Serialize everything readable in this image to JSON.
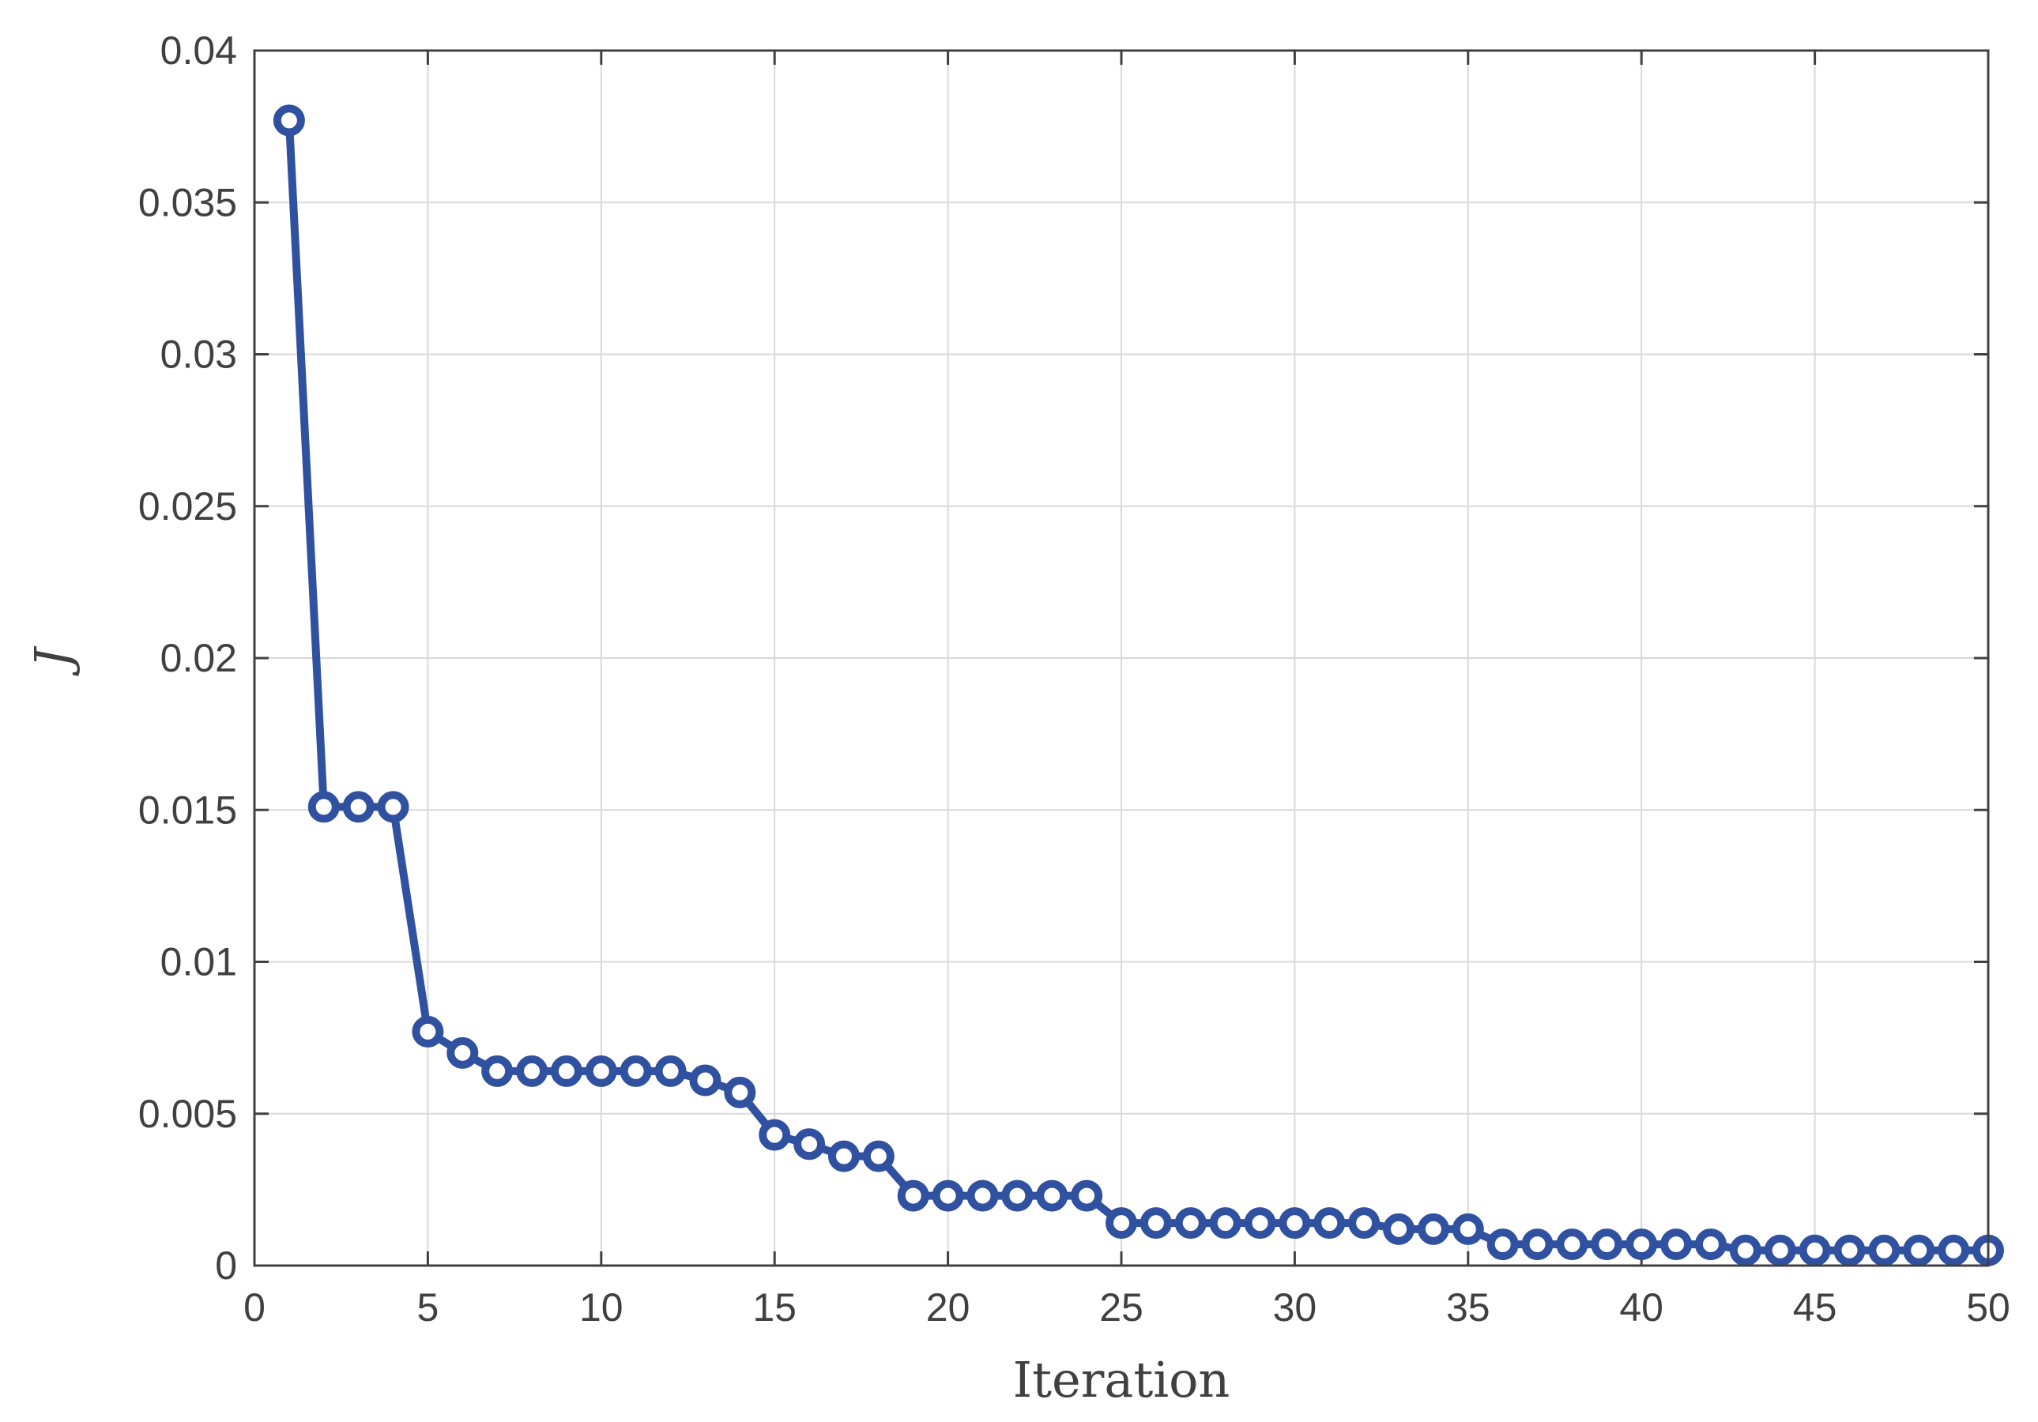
{
  "chart_data": {
    "type": "line",
    "title": "",
    "xlabel": "Iteration",
    "ylabel": "J",
    "xlim": [
      0,
      50
    ],
    "ylim": [
      0,
      0.04
    ],
    "x_ticks": [
      "0",
      "5",
      "10",
      "15",
      "20",
      "25",
      "30",
      "35",
      "40",
      "45",
      "50"
    ],
    "y_ticks": [
      "0",
      "0.005",
      "0.01",
      "0.015",
      "0.02",
      "0.025",
      "0.03",
      "0.035",
      "0.04"
    ],
    "grid": true,
    "legend": "none",
    "marker": "circle",
    "color": "#3050a0",
    "series": [
      {
        "x": [
          1,
          2,
          3,
          4,
          5,
          6,
          7,
          8,
          9,
          10,
          11,
          12,
          13,
          14,
          15,
          16,
          17,
          18,
          19,
          20,
          21,
          22,
          23,
          24,
          25,
          26,
          27,
          28,
          29,
          30,
          31,
          32,
          33,
          34,
          35,
          36,
          37,
          38,
          39,
          40,
          41,
          42,
          43,
          44,
          45,
          46,
          47,
          48,
          49,
          50
        ],
        "values": [
          0.0377,
          0.0151,
          0.0151,
          0.0151,
          0.0077,
          0.007,
          0.0064,
          0.0064,
          0.0064,
          0.0064,
          0.0064,
          0.0064,
          0.0061,
          0.0057,
          0.0043,
          0.004,
          0.0036,
          0.0036,
          0.0023,
          0.0023,
          0.0023,
          0.0023,
          0.0023,
          0.0023,
          0.0014,
          0.0014,
          0.0014,
          0.0014,
          0.0014,
          0.0014,
          0.0014,
          0.0014,
          0.0012,
          0.0012,
          0.0012,
          0.0007,
          0.0007,
          0.0007,
          0.0007,
          0.0007,
          0.0007,
          0.0007,
          0.0005,
          0.0005,
          0.0005,
          0.0005,
          0.0005,
          0.0005,
          0.0005,
          0.0005
        ]
      }
    ]
  }
}
